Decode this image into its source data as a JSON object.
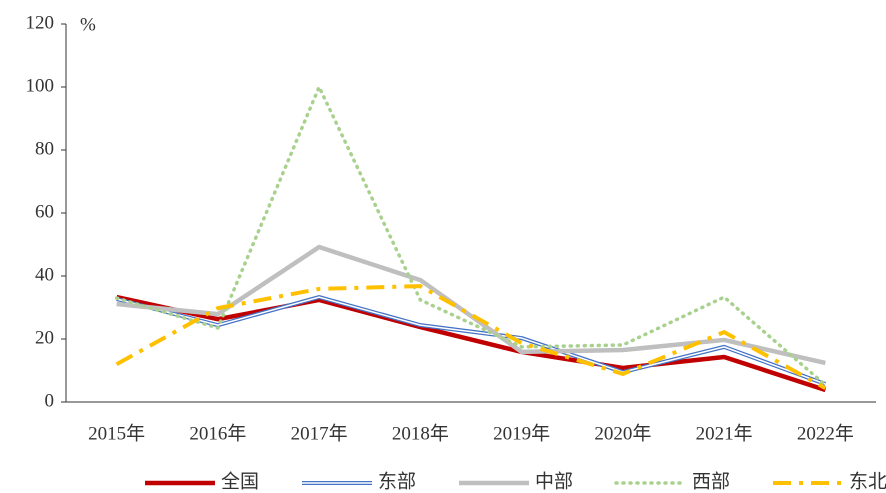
{
  "chart_data": {
    "type": "line",
    "y_unit": "%",
    "categories": [
      "2015年",
      "2016年",
      "2017年",
      "2018年",
      "2019年",
      "2020年",
      "2021年",
      "2022年"
    ],
    "series": [
      {
        "name": "全国",
        "color": "#c00000",
        "style": "solid-thick",
        "values": [
          33.3,
          26.3,
          32.4,
          23.8,
          15.9,
          10.8,
          14.3,
          3.8
        ]
      },
      {
        "name": "东部",
        "color": "#4472c4",
        "style": "double",
        "values": [
          32.7,
          24.4,
          33.3,
          24.4,
          20.3,
          9.5,
          17.5,
          5.7
        ]
      },
      {
        "name": "中部",
        "color": "#bfbfbf",
        "style": "solid-thick",
        "values": [
          31.1,
          27.9,
          49.2,
          38.7,
          15.9,
          16.5,
          19.7,
          12.4
        ]
      },
      {
        "name": "西部",
        "color": "#a9d18e",
        "style": "dotted",
        "values": [
          33.0,
          23.5,
          100.0,
          32.4,
          17.5,
          18.1,
          33.3,
          5.4
        ]
      },
      {
        "name": "东北",
        "color": "#ffc000",
        "style": "dashdot",
        "values": [
          12.0,
          29.8,
          35.9,
          36.8,
          18.7,
          8.9,
          22.2,
          4.4
        ]
      }
    ],
    "ylim": [
      0,
      120
    ],
    "yticks": [
      0,
      20,
      40,
      60,
      80,
      100,
      120
    ],
    "legend": "bottom"
  }
}
